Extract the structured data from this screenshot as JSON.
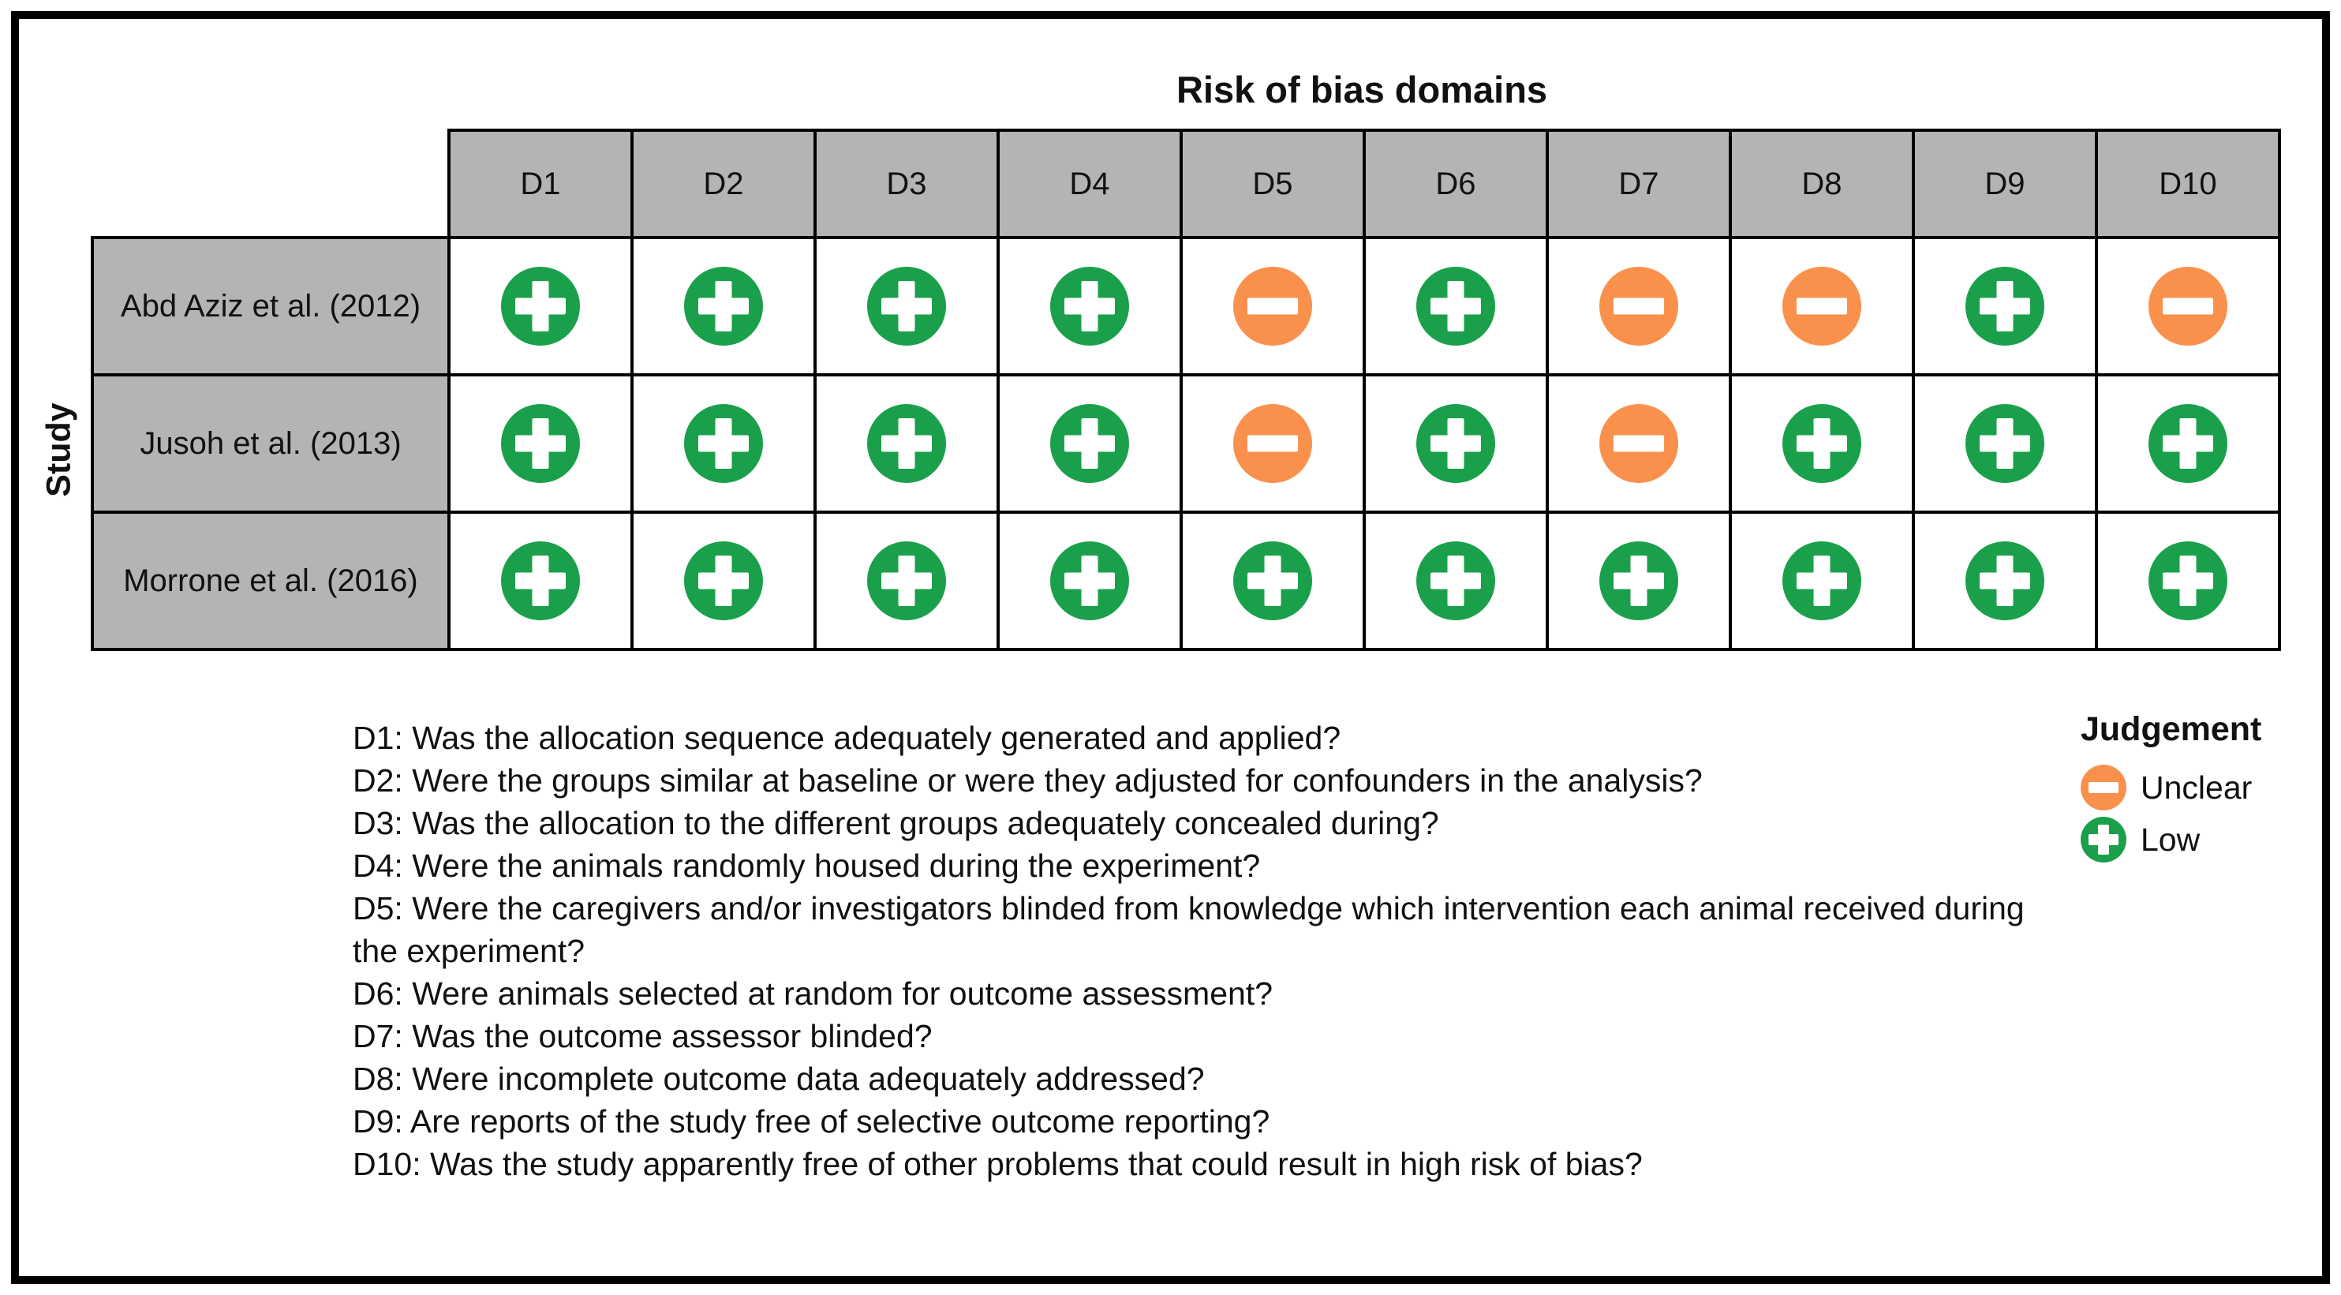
{
  "colors": {
    "low": "#1aa04b",
    "unclear": "#f9914d",
    "header_fill": "#b4b4b4",
    "grid_line": "#000000",
    "frame_border": "#000000"
  },
  "chart_data": {
    "type": "table",
    "title": "Risk of bias domains",
    "row_axis_label": "Study",
    "columns": [
      "D1",
      "D2",
      "D3",
      "D4",
      "D5",
      "D6",
      "D7",
      "D8",
      "D9",
      "D10"
    ],
    "rows": [
      {
        "study": "Abd Aziz et al. (2012)",
        "judgements": [
          "low",
          "low",
          "low",
          "low",
          "unclear",
          "low",
          "unclear",
          "unclear",
          "low",
          "unclear"
        ]
      },
      {
        "study": "Jusoh et al. (2013)",
        "judgements": [
          "low",
          "low",
          "low",
          "low",
          "unclear",
          "low",
          "unclear",
          "low",
          "low",
          "low"
        ]
      },
      {
        "study": "Morrone et al. (2016)",
        "judgements": [
          "low",
          "low",
          "low",
          "low",
          "low",
          "low",
          "low",
          "low",
          "low",
          "low"
        ]
      }
    ],
    "legend_position": "bottom-right",
    "judgement_levels": [
      {
        "key": "unclear",
        "label": "Unclear",
        "symbol": "minus",
        "color": "#f9914d"
      },
      {
        "key": "low",
        "label": "Low",
        "symbol": "plus",
        "color": "#1aa04b"
      }
    ]
  },
  "legend": {
    "title": "Judgement",
    "items": [
      {
        "judgement": "unclear",
        "label": "Unclear"
      },
      {
        "judgement": "low",
        "label": "Low"
      }
    ]
  },
  "footnotes": [
    "D1: Was the allocation sequence adequately generated and applied?",
    "D2: Were the groups similar at baseline or were they adjusted for confounders in the analysis?",
    "D3: Was the allocation to the different groups adequately concealed during?",
    "D4: Were the animals randomly housed during the experiment?",
    "D5: Were the caregivers and/or investigators blinded from knowledge which intervention each animal received during the experiment?",
    "D6: Were animals selected at random for outcome assessment?",
    "D7: Was the outcome assessor blinded?",
    "D8: Were incomplete outcome data adequately addressed?",
    "D9: Are reports of the study free of selective outcome reporting?",
    "D10: Was the study apparently free of other problems that could result in high risk of bias?"
  ]
}
